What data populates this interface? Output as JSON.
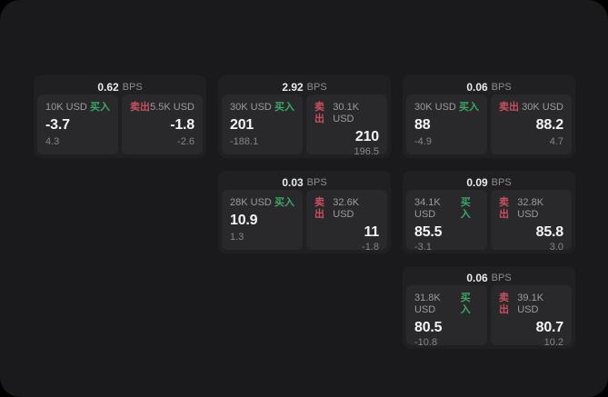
{
  "labels": {
    "bps_unit": "BPS",
    "buy": "买入",
    "sell": "卖出"
  },
  "colors": {
    "buy_green": "#3ca865",
    "sell_red": "#c94f5d",
    "window_bg": "#1a1a1c",
    "card_bg": "#202023",
    "panel_bg": "#29292c"
  },
  "cards": [
    {
      "bps": "0.62",
      "unit": "BPS",
      "buy": {
        "size": "10K USD",
        "label": "买入",
        "price": "-3.7",
        "change": "4.3"
      },
      "sell": {
        "label": "卖出",
        "size": "5.5K USD",
        "price": "-1.8",
        "change": "-2.6"
      }
    },
    {
      "bps": "2.92",
      "unit": "BPS",
      "buy": {
        "size": "30K USD",
        "label": "买入",
        "price": "201",
        "change": "-188.1"
      },
      "sell": {
        "label": "卖出",
        "size": "30.1K USD",
        "price": "210",
        "change": "196.5"
      }
    },
    {
      "bps": "0.06",
      "unit": "BPS",
      "buy": {
        "size": "30K USD",
        "label": "买入",
        "price": "88",
        "change": "-4.9"
      },
      "sell": {
        "label": "卖出",
        "size": "30K USD",
        "price": "88.2",
        "change": "4.7"
      }
    },
    {
      "bps": "0.03",
      "unit": "BPS",
      "buy": {
        "size": "28K USD",
        "label": "买入",
        "price": "10.9",
        "change": "1.3"
      },
      "sell": {
        "label": "卖出",
        "size": "32.6K USD",
        "price": "11",
        "change": "-1.8"
      }
    },
    {
      "bps": "0.09",
      "unit": "BPS",
      "buy": {
        "size": "34.1K USD",
        "label": "买入",
        "price": "85.5",
        "change": "-3.1"
      },
      "sell": {
        "label": "卖出",
        "size": "32.8K USD",
        "price": "85.8",
        "change": "3.0"
      }
    },
    {
      "bps": "0.06",
      "unit": "BPS",
      "buy": {
        "size": "31.8K USD",
        "label": "买入",
        "price": "80.5",
        "change": "-10.8"
      },
      "sell": {
        "label": "卖出",
        "size": "39.1K USD",
        "price": "80.7",
        "change": "10.2"
      }
    }
  ]
}
